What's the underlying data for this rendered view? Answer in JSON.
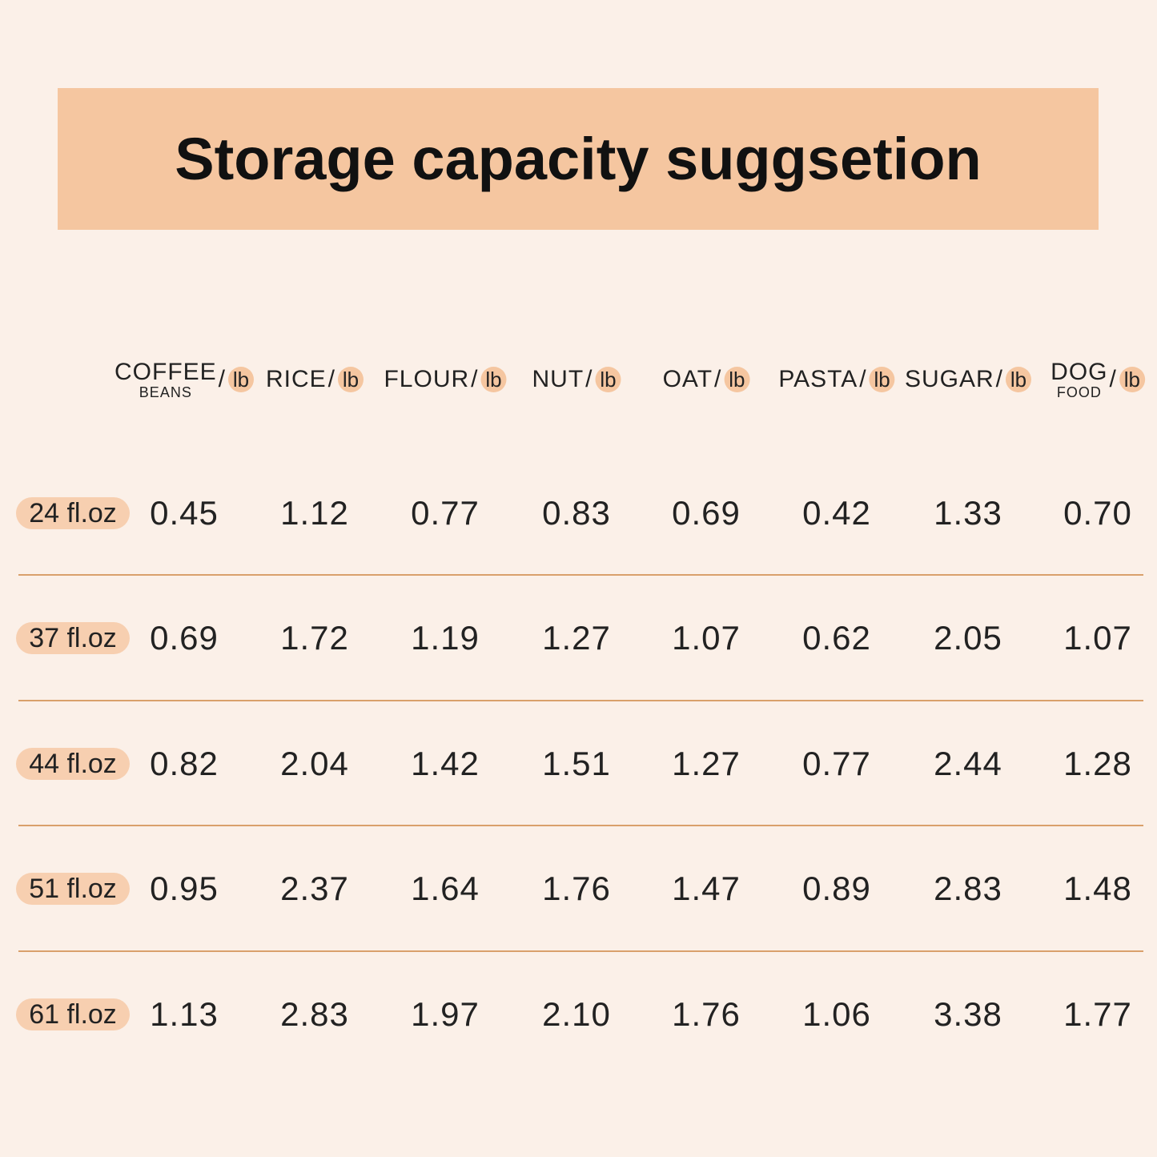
{
  "header": {
    "title": "Storage capacity suggsetion"
  },
  "table": {
    "columns": [
      {
        "name": "COFFEE",
        "sub": "BEANS",
        "separator": "/",
        "unit": "lb"
      },
      {
        "name": "RICE",
        "separator": "/",
        "unit": "lb"
      },
      {
        "name": "FLOUR",
        "separator": "/",
        "unit": "lb"
      },
      {
        "name": "NUT",
        "separator": "/",
        "unit": "lb"
      },
      {
        "name": "OAT",
        "separator": "/",
        "unit": "lb"
      },
      {
        "name": "PASTA",
        "separator": "/",
        "unit": "lb"
      },
      {
        "name": "SUGAR",
        "separator": "/",
        "unit": "lb"
      },
      {
        "name": "DOG",
        "sub": "FOOD",
        "separator": "/",
        "unit": "lb"
      }
    ],
    "rows": [
      {
        "label": "24 fl.oz",
        "values": [
          "0.45",
          "1.12",
          "0.77",
          "0.83",
          "0.69",
          "0.42",
          "1.33",
          "0.70"
        ]
      },
      {
        "label": "37 fl.oz",
        "values": [
          "0.69",
          "1.72",
          "1.19",
          "1.27",
          "1.07",
          "0.62",
          "2.05",
          "1.07"
        ]
      },
      {
        "label": "44 fl.oz",
        "values": [
          "0.82",
          "2.04",
          "1.42",
          "1.51",
          "1.27",
          "0.77",
          "2.44",
          "1.28"
        ]
      },
      {
        "label": "51 fl.oz",
        "values": [
          "0.95",
          "2.37",
          "1.64",
          "1.76",
          "1.47",
          "0.89",
          "2.83",
          "1.48"
        ]
      },
      {
        "label": "61 fl.oz",
        "values": [
          "1.13",
          "2.83",
          "1.97",
          "2.10",
          "1.76",
          "1.06",
          "3.38",
          "1.77"
        ]
      }
    ]
  }
}
